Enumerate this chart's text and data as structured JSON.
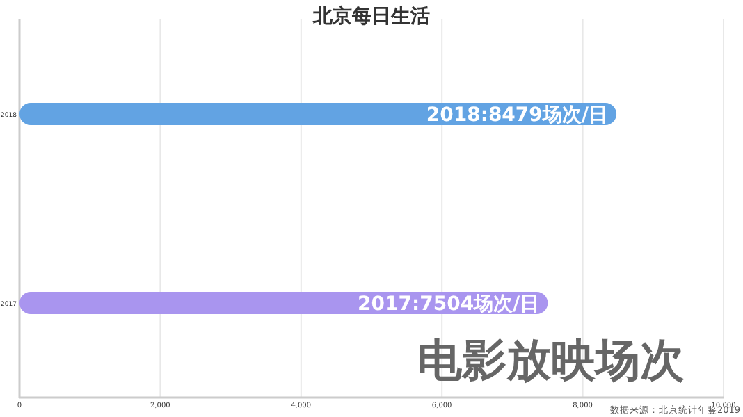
{
  "chart_data": {
    "type": "bar",
    "orientation": "horizontal",
    "title": "北京每日生活",
    "categories": [
      "2018",
      "2017"
    ],
    "values": [
      8479,
      7504
    ],
    "colors": [
      "#62a3e3",
      "#a995ef"
    ],
    "value_labels": [
      "2018:8479场次/日",
      "2017:7504场次/日"
    ],
    "xlim": [
      0,
      10000
    ],
    "xticks": [
      0,
      {
        "value": 2000,
        "label": "2,000"
      },
      {
        "value": 4000,
        "label": "4,000"
      },
      {
        "value": 6000,
        "label": "6,000"
      },
      {
        "value": 8000,
        "label": "8,000"
      },
      {
        "value": 10000,
        "label": "10,000"
      }
    ],
    "grid": "x",
    "annotations": [
      "电影放映场次",
      "数据来源：北京统计年鉴2019"
    ]
  }
}
